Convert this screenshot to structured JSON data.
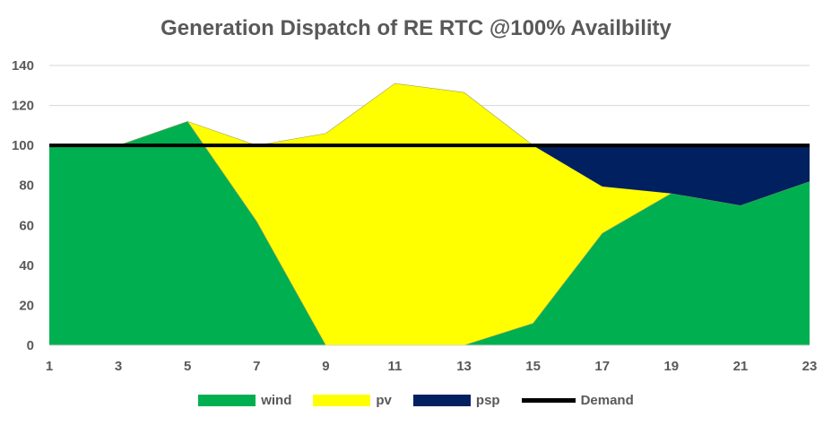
{
  "chart_data": {
    "type": "area",
    "stacked": true,
    "title": "Generation Dispatch of RE RTC @100% Availbility",
    "x": [
      1,
      3,
      5,
      7,
      9,
      11,
      13,
      15,
      17,
      19,
      21,
      23
    ],
    "x_tick_labels": [
      "1",
      "3",
      "5",
      "7",
      "9",
      "11",
      "13",
      "15",
      "17",
      "19",
      "21",
      "23"
    ],
    "ylim": [
      0,
      140
    ],
    "y_ticks": [
      0,
      20,
      40,
      60,
      80,
      100,
      120,
      140
    ],
    "grid": true,
    "legend": "bottom",
    "series": [
      {
        "name": "wind",
        "type": "area",
        "color": "#00B050",
        "values": [
          100,
          100,
          112,
          62,
          0,
          0,
          0,
          11,
          56,
          76,
          70,
          82
        ]
      },
      {
        "name": "pv",
        "type": "area",
        "color": "#FFFF00",
        "values": [
          0,
          0,
          0,
          38,
          106,
          131,
          126.5,
          89,
          23.5,
          0,
          0,
          0
        ]
      },
      {
        "name": "psp",
        "type": "area",
        "color": "#002060",
        "values": [
          0,
          0,
          0,
          0,
          0,
          0,
          0,
          0,
          20.5,
          24,
          30,
          18
        ]
      },
      {
        "name": "Demand",
        "type": "line",
        "color": "#000000",
        "values": [
          100,
          100,
          100,
          100,
          100,
          100,
          100,
          100,
          100,
          100,
          100,
          100
        ]
      }
    ]
  }
}
